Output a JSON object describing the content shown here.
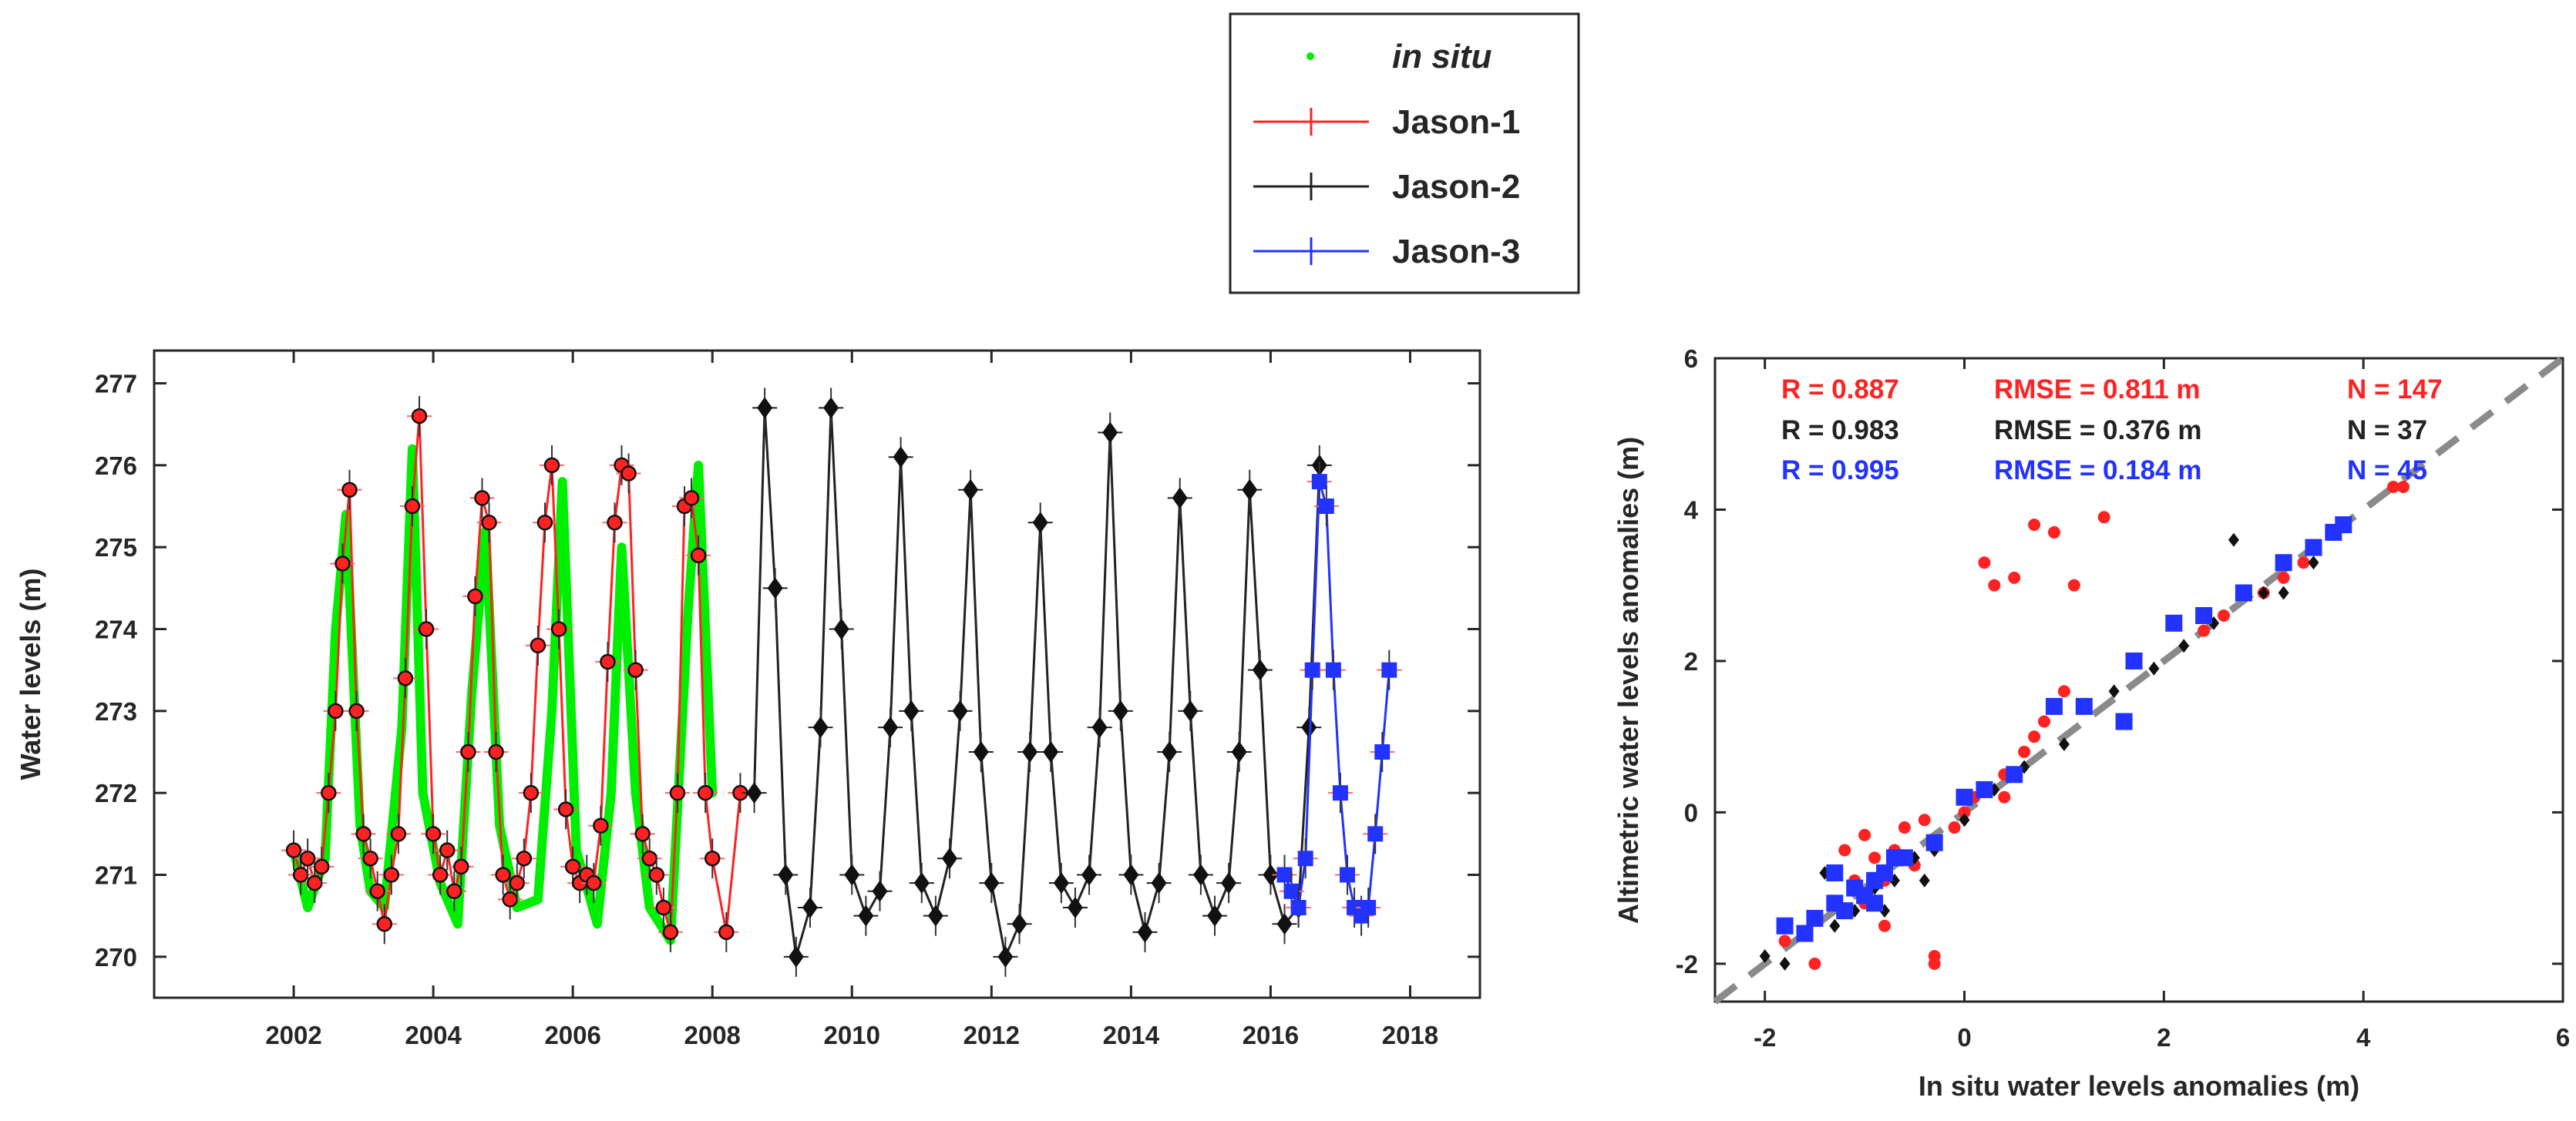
{
  "legend": {
    "entries": [
      {
        "label": "in situ",
        "italic": true,
        "color": "#00ee00",
        "style": "dot"
      },
      {
        "label": "Jason-1",
        "italic": false,
        "color": "#ff2222",
        "style": "line-plus"
      },
      {
        "label": "Jason-2",
        "italic": false,
        "color": "#222222",
        "style": "line-plus"
      },
      {
        "label": "Jason-3",
        "italic": false,
        "color": "#2233ff",
        "style": "line-plus"
      }
    ]
  },
  "chart_data": [
    {
      "type": "line",
      "title": "",
      "xlabel": "",
      "ylabel": "Water levels (m)",
      "xlim": [
        2000.0,
        2019.0
      ],
      "ylim": [
        269.5,
        277.4
      ],
      "xticks": [
        2002,
        2004,
        2006,
        2008,
        2010,
        2012,
        2014,
        2016,
        2018
      ],
      "xtick_labels": [
        "2002",
        "2004",
        "2006",
        "2008",
        "2010",
        "2012",
        "2014",
        "2016",
        "2018"
      ],
      "yticks": [
        270,
        271,
        272,
        273,
        274,
        275,
        276,
        277
      ],
      "ytick_labels": [
        "270",
        "271",
        "272",
        "273",
        "274",
        "275",
        "276",
        "277"
      ],
      "series": [
        {
          "name": "in situ",
          "color": "#00ee00",
          "x": [
            2002.0,
            2002.2,
            2002.45,
            2002.6,
            2002.75,
            2002.95,
            2003.1,
            2003.3,
            2003.55,
            2003.7,
            2003.85,
            2004.1,
            2004.35,
            2004.55,
            2004.75,
            2004.95,
            2005.2,
            2005.5,
            2005.7,
            2005.85,
            2006.05,
            2006.35,
            2006.55,
            2006.7,
            2006.9,
            2007.1,
            2007.4,
            2007.65,
            2007.8,
            2008.0
          ],
          "y": [
            271.3,
            270.6,
            271.2,
            274.0,
            275.4,
            271.6,
            270.8,
            270.6,
            272.8,
            276.2,
            272.0,
            270.9,
            270.4,
            273.2,
            275.2,
            271.6,
            270.6,
            270.7,
            273.0,
            275.8,
            271.3,
            270.4,
            272.0,
            275.0,
            272.0,
            270.6,
            270.2,
            274.2,
            276.0,
            272.0
          ]
        },
        {
          "name": "Jason-1",
          "color": "#ff2222",
          "x": [
            2002.0,
            2002.1,
            2002.2,
            2002.3,
            2002.4,
            2002.5,
            2002.6,
            2002.7,
            2002.8,
            2002.9,
            2003.0,
            2003.1,
            2003.2,
            2003.3,
            2003.4,
            2003.5,
            2003.6,
            2003.7,
            2003.8,
            2003.9,
            2004.0,
            2004.1,
            2004.2,
            2004.3,
            2004.4,
            2004.5,
            2004.6,
            2004.7,
            2004.8,
            2004.9,
            2005.0,
            2005.1,
            2005.2,
            2005.3,
            2005.4,
            2005.5,
            2005.6,
            2005.7,
            2005.8,
            2005.9,
            2006.0,
            2006.1,
            2006.2,
            2006.3,
            2006.4,
            2006.5,
            2006.6,
            2006.7,
            2006.8,
            2006.9,
            2007.0,
            2007.1,
            2007.2,
            2007.3,
            2007.4,
            2007.5,
            2007.6,
            2007.7,
            2007.8,
            2007.9,
            2008.0,
            2008.2,
            2008.4
          ],
          "y": [
            271.3,
            271.0,
            271.2,
            270.9,
            271.1,
            272.0,
            273.0,
            274.8,
            275.7,
            273.0,
            271.5,
            271.2,
            270.8,
            270.4,
            271.0,
            271.5,
            273.4,
            275.5,
            276.6,
            274.0,
            271.5,
            271.0,
            271.3,
            270.8,
            271.1,
            272.5,
            274.4,
            275.6,
            275.3,
            272.5,
            271.0,
            270.7,
            270.9,
            271.2,
            272.0,
            273.8,
            275.3,
            276.0,
            274.0,
            271.8,
            271.1,
            270.9,
            271.0,
            270.9,
            271.6,
            273.6,
            275.3,
            276.0,
            275.9,
            273.5,
            271.5,
            271.2,
            271.0,
            270.6,
            270.3,
            272.0,
            275.5,
            275.6,
            274.9,
            272.0,
            271.2,
            270.3,
            272.0
          ]
        },
        {
          "name": "Jason-2",
          "color": "#222222",
          "x": [
            2008.6,
            2008.75,
            2008.9,
            2009.05,
            2009.2,
            2009.4,
            2009.55,
            2009.7,
            2009.85,
            2010.0,
            2010.2,
            2010.4,
            2010.55,
            2010.7,
            2010.85,
            2011.0,
            2011.2,
            2011.4,
            2011.55,
            2011.7,
            2011.85,
            2012.0,
            2012.2,
            2012.4,
            2012.55,
            2012.7,
            2012.85,
            2013.0,
            2013.2,
            2013.4,
            2013.55,
            2013.7,
            2013.85,
            2014.0,
            2014.2,
            2014.4,
            2014.55,
            2014.7,
            2014.85,
            2015.0,
            2015.2,
            2015.4,
            2015.55,
            2015.7,
            2015.85,
            2016.0,
            2016.2,
            2016.4,
            2016.55,
            2016.7
          ],
          "y": [
            272.0,
            276.7,
            274.5,
            271.0,
            270.0,
            270.6,
            272.8,
            276.7,
            274.0,
            271.0,
            270.5,
            270.8,
            272.8,
            276.1,
            273.0,
            270.9,
            270.5,
            271.2,
            273.0,
            275.7,
            272.5,
            270.9,
            270.0,
            270.4,
            272.5,
            275.3,
            272.5,
            270.9,
            270.6,
            271.0,
            272.8,
            276.4,
            273.0,
            271.0,
            270.3,
            270.9,
            272.5,
            275.6,
            273.0,
            271.0,
            270.5,
            270.9,
            272.5,
            275.7,
            273.5,
            271.0,
            270.4,
            270.6,
            272.8,
            276.0
          ]
        },
        {
          "name": "Jason-3",
          "color": "#2233ff",
          "x": [
            2016.2,
            2016.3,
            2016.4,
            2016.5,
            2016.6,
            2016.7,
            2016.8,
            2016.9,
            2017.0,
            2017.1,
            2017.2,
            2017.3,
            2017.4,
            2017.5,
            2017.6,
            2017.7
          ],
          "y": [
            271.0,
            270.8,
            270.6,
            271.2,
            273.5,
            275.8,
            275.5,
            273.5,
            272.0,
            271.0,
            270.6,
            270.5,
            270.6,
            271.5,
            272.5,
            273.5
          ]
        }
      ]
    },
    {
      "type": "scatter",
      "title": "",
      "xlabel": "In situ water levels anomalies (m)",
      "ylabel": "Altimetric water levels anomalies (m)",
      "xlim": [
        -2.5,
        6
      ],
      "ylim": [
        -2.5,
        6
      ],
      "xticks": [
        -2,
        0,
        2,
        4,
        6
      ],
      "xtick_labels": [
        "-2",
        "0",
        "2",
        "4",
        "6"
      ],
      "yticks": [
        -2,
        0,
        2,
        4,
        6
      ],
      "ytick_labels": [
        "-2",
        "0",
        "2",
        "4",
        "6"
      ],
      "reference_line": "y = x",
      "stats": [
        {
          "series": "Jason-1",
          "color": "#ff2222",
          "R": "R = 0.887",
          "RMSE": "RMSE = 0.811 m",
          "N": "N = 147"
        },
        {
          "series": "Jason-2",
          "color": "#222222",
          "R": "R = 0.983",
          "RMSE": "RMSE = 0.376 m",
          "N": "N = 37"
        },
        {
          "series": "Jason-3",
          "color": "#2233ff",
          "R": "R = 0.995",
          "RMSE": "RMSE = 0.184 m",
          "N": "N = 45"
        }
      ],
      "series": [
        {
          "name": "Jason-1",
          "color": "#ff2222",
          "x": [
            -1.8,
            -1.5,
            -1.3,
            -1.1,
            -1.0,
            -0.9,
            -0.8,
            -0.7,
            -0.5,
            -0.3,
            -0.1,
            0.1,
            0.3,
            0.5,
            0.7,
            0.9,
            1.1,
            1.4,
            -1.2,
            -1.0,
            -0.8,
            -0.6,
            -0.4,
            0.0,
            0.2,
            0.4,
            0.6,
            0.8,
            1.0,
            2.4,
            2.6,
            3.0,
            3.2,
            3.4,
            4.3,
            4.4,
            -0.3,
            -1.5,
            0.4,
            0.7
          ],
          "y": [
            -1.7,
            -1.4,
            -1.2,
            -0.9,
            -1.2,
            -0.6,
            -0.9,
            -0.5,
            -0.7,
            -2.0,
            -0.2,
            0.2,
            3.0,
            3.1,
            3.8,
            3.7,
            3.0,
            3.9,
            -0.5,
            -0.3,
            -1.5,
            -0.2,
            -0.1,
            0.0,
            3.3,
            0.5,
            0.8,
            1.2,
            1.6,
            2.4,
            2.6,
            2.9,
            3.1,
            3.3,
            4.3,
            4.3,
            -1.9,
            -2.0,
            0.2,
            1.0
          ]
        },
        {
          "name": "Jason-2",
          "color": "#222222",
          "x": [
            -2.0,
            -1.8,
            -1.6,
            -1.3,
            -1.1,
            -0.9,
            -0.7,
            -0.5,
            -0.3,
            0.0,
            0.3,
            0.6,
            1.0,
            1.5,
            1.9,
            2.2,
            2.5,
            2.7,
            3.0,
            3.2,
            3.5,
            -1.4,
            -0.8,
            -0.4
          ],
          "y": [
            -1.9,
            -2.0,
            -1.6,
            -1.5,
            -1.3,
            -1.0,
            -0.9,
            -0.6,
            -0.5,
            -0.1,
            0.3,
            0.6,
            0.9,
            1.6,
            1.9,
            2.2,
            2.5,
            3.6,
            2.9,
            2.9,
            3.3,
            -0.8,
            -1.3,
            -0.9
          ]
        },
        {
          "name": "Jason-3",
          "color": "#2233ff",
          "x": [
            -1.8,
            -1.6,
            -1.5,
            -1.3,
            -1.2,
            -1.1,
            -1.0,
            -0.9,
            -0.8,
            -0.7,
            -0.6,
            -0.3,
            0.0,
            0.2,
            0.5,
            0.9,
            1.2,
            1.6,
            1.7,
            2.1,
            2.4,
            2.8,
            3.2,
            3.5,
            3.7,
            3.8,
            -1.3,
            -0.9
          ],
          "y": [
            -1.5,
            -1.6,
            -1.4,
            -1.2,
            -1.3,
            -1.0,
            -1.1,
            -0.9,
            -0.8,
            -0.6,
            -0.6,
            -0.4,
            0.2,
            0.3,
            0.5,
            1.4,
            1.4,
            1.2,
            2.0,
            2.5,
            2.6,
            2.9,
            3.3,
            3.5,
            3.7,
            3.8,
            -0.8,
            -1.2
          ]
        }
      ]
    }
  ]
}
